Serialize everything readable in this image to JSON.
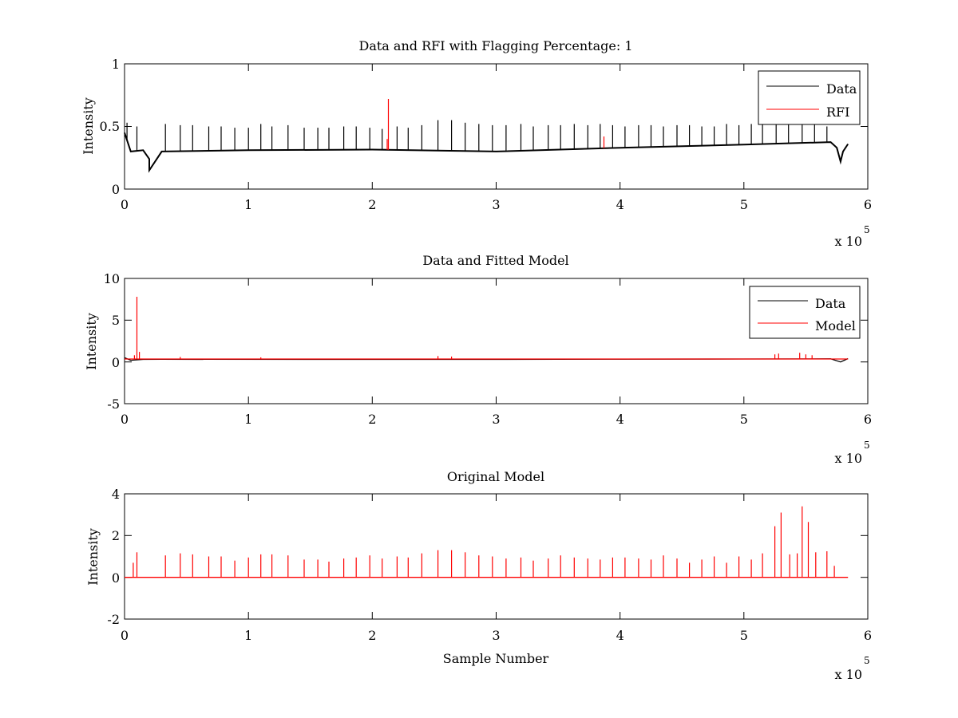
{
  "chart_data": [
    {
      "type": "line",
      "title": "Data and RFI with Flagging Percentage: 1",
      "xlabel": "",
      "ylabel": "Intensity",
      "xlim": [
        0,
        6
      ],
      "ylim": [
        0,
        1
      ],
      "xticks": [
        "0",
        "1",
        "2",
        "3",
        "4",
        "5",
        "6"
      ],
      "yticks": [
        "0",
        "0.5",
        "1"
      ],
      "x_multiplier_label": "x 10",
      "x_multiplier_exp": "5",
      "legend": {
        "placement": "top-right",
        "entries": [
          "Data",
          "RFI"
        ]
      },
      "series": [
        {
          "name": "Data",
          "color": "#000000",
          "baseline": [
            [
              0.0,
              0.45
            ],
            [
              0.05,
              0.3
            ],
            [
              0.15,
              0.31
            ],
            [
              0.2,
              0.24
            ],
            [
              0.2,
              0.15
            ],
            [
              0.3,
              0.3
            ],
            [
              1.0,
              0.31
            ],
            [
              2.0,
              0.315
            ],
            [
              3.0,
              0.3
            ],
            [
              4.0,
              0.33
            ],
            [
              5.0,
              0.355
            ],
            [
              5.7,
              0.375
            ],
            [
              5.75,
              0.33
            ],
            [
              5.78,
              0.22
            ],
            [
              5.8,
              0.3
            ],
            [
              5.84,
              0.36
            ]
          ],
          "spikes": [
            [
              0.02,
              0.53
            ],
            [
              0.1,
              0.5
            ],
            [
              0.33,
              0.52
            ],
            [
              0.45,
              0.51
            ],
            [
              0.55,
              0.51
            ],
            [
              0.68,
              0.5
            ],
            [
              0.78,
              0.5
            ],
            [
              0.89,
              0.49
            ],
            [
              1.0,
              0.49
            ],
            [
              1.1,
              0.52
            ],
            [
              1.19,
              0.5
            ],
            [
              1.32,
              0.51
            ],
            [
              1.45,
              0.49
            ],
            [
              1.56,
              0.49
            ],
            [
              1.65,
              0.49
            ],
            [
              1.77,
              0.5
            ],
            [
              1.87,
              0.5
            ],
            [
              1.98,
              0.49
            ],
            [
              2.08,
              0.48
            ],
            [
              2.2,
              0.5
            ],
            [
              2.29,
              0.49
            ],
            [
              2.4,
              0.51
            ],
            [
              2.53,
              0.55
            ],
            [
              2.64,
              0.55
            ],
            [
              2.75,
              0.53
            ],
            [
              2.86,
              0.52
            ],
            [
              2.97,
              0.51
            ],
            [
              3.08,
              0.51
            ],
            [
              3.2,
              0.52
            ],
            [
              3.3,
              0.5
            ],
            [
              3.42,
              0.51
            ],
            [
              3.52,
              0.51
            ],
            [
              3.63,
              0.52
            ],
            [
              3.74,
              0.51
            ],
            [
              3.84,
              0.52
            ],
            [
              3.94,
              0.51
            ],
            [
              4.04,
              0.5
            ],
            [
              4.15,
              0.51
            ],
            [
              4.25,
              0.51
            ],
            [
              4.35,
              0.5
            ],
            [
              4.46,
              0.51
            ],
            [
              4.56,
              0.51
            ],
            [
              4.66,
              0.5
            ],
            [
              4.76,
              0.5
            ],
            [
              4.86,
              0.52
            ],
            [
              4.96,
              0.51
            ],
            [
              5.06,
              0.52
            ],
            [
              5.15,
              0.52
            ],
            [
              5.26,
              0.52
            ],
            [
              5.36,
              0.53
            ],
            [
              5.47,
              0.52
            ],
            [
              5.57,
              0.53
            ],
            [
              5.67,
              0.5
            ]
          ]
        },
        {
          "name": "RFI",
          "color": "#ff0000",
          "spikes": [
            [
              2.13,
              0.72
            ],
            [
              2.12,
              0.4
            ],
            [
              3.87,
              0.42
            ]
          ]
        }
      ]
    },
    {
      "type": "line",
      "title": "Data and Fitted Model",
      "xlabel": "",
      "ylabel": "Intensity",
      "xlim": [
        0,
        6
      ],
      "ylim": [
        -5,
        10
      ],
      "xticks": [
        "0",
        "1",
        "2",
        "3",
        "4",
        "5",
        "6"
      ],
      "yticks": [
        "-5",
        "0",
        "5",
        "10"
      ],
      "x_multiplier_label": "x 10",
      "x_multiplier_exp": "5",
      "legend": {
        "placement": "top-right",
        "entries": [
          "Data",
          "Model"
        ]
      },
      "series": [
        {
          "name": "Data",
          "color": "#000000",
          "baseline": [
            [
              0.0,
              0.5
            ],
            [
              0.05,
              0.2
            ],
            [
              0.15,
              0.3
            ],
            [
              0.3,
              0.31
            ],
            [
              3.0,
              0.3
            ],
            [
              4.0,
              0.33
            ],
            [
              5.0,
              0.35
            ],
            [
              5.7,
              0.37
            ],
            [
              5.78,
              0.0
            ],
            [
              5.84,
              0.4
            ]
          ],
          "spikes": []
        },
        {
          "name": "Model",
          "color": "#ff0000",
          "baseline": [
            [
              0.0,
              0.35
            ],
            [
              5.84,
              0.35
            ]
          ],
          "spikes": [
            [
              0.1,
              7.8
            ],
            [
              0.12,
              1.2
            ],
            [
              0.08,
              0.8
            ],
            [
              0.45,
              0.6
            ],
            [
              1.1,
              0.55
            ],
            [
              2.53,
              0.7
            ],
            [
              2.64,
              0.65
            ],
            [
              5.25,
              0.9
            ],
            [
              5.28,
              1.0
            ],
            [
              5.45,
              1.1
            ],
            [
              5.5,
              0.9
            ],
            [
              5.55,
              0.8
            ]
          ]
        }
      ]
    },
    {
      "type": "line",
      "title": "Original Model",
      "xlabel": "Sample Number",
      "ylabel": "Intensity",
      "xlim": [
        0,
        6
      ],
      "ylim": [
        -2,
        4
      ],
      "xticks": [
        "0",
        "1",
        "2",
        "3",
        "4",
        "5",
        "6"
      ],
      "yticks": [
        "-2",
        "0",
        "2",
        "4"
      ],
      "x_multiplier_label": "x 10",
      "x_multiplier_exp": "5",
      "series": [
        {
          "name": "Model",
          "color": "#ff0000",
          "baseline": [
            [
              0.0,
              0.0
            ],
            [
              5.84,
              0.0
            ]
          ],
          "spikes": [
            [
              0.07,
              0.7
            ],
            [
              0.1,
              1.2
            ],
            [
              0.33,
              1.05
            ],
            [
              0.45,
              1.15
            ],
            [
              0.55,
              1.1
            ],
            [
              0.68,
              1.0
            ],
            [
              0.78,
              1.0
            ],
            [
              0.89,
              0.8
            ],
            [
              1.0,
              0.95
            ],
            [
              1.1,
              1.1
            ],
            [
              1.19,
              1.1
            ],
            [
              1.32,
              1.05
            ],
            [
              1.45,
              0.85
            ],
            [
              1.56,
              0.85
            ],
            [
              1.65,
              0.75
            ],
            [
              1.77,
              0.9
            ],
            [
              1.87,
              0.95
            ],
            [
              1.98,
              1.05
            ],
            [
              2.08,
              0.9
            ],
            [
              2.2,
              1.0
            ],
            [
              2.29,
              0.95
            ],
            [
              2.4,
              1.15
            ],
            [
              2.53,
              1.3
            ],
            [
              2.64,
              1.3
            ],
            [
              2.75,
              1.2
            ],
            [
              2.86,
              1.05
            ],
            [
              2.97,
              1.0
            ],
            [
              3.08,
              0.9
            ],
            [
              3.2,
              0.95
            ],
            [
              3.3,
              0.8
            ],
            [
              3.42,
              0.9
            ],
            [
              3.52,
              1.05
            ],
            [
              3.63,
              0.95
            ],
            [
              3.74,
              0.9
            ],
            [
              3.84,
              0.85
            ],
            [
              3.94,
              0.95
            ],
            [
              4.04,
              0.95
            ],
            [
              4.15,
              0.9
            ],
            [
              4.25,
              0.85
            ],
            [
              4.35,
              1.05
            ],
            [
              4.46,
              0.9
            ],
            [
              4.56,
              0.7
            ],
            [
              4.66,
              0.85
            ],
            [
              4.76,
              1.0
            ],
            [
              4.86,
              0.7
            ],
            [
              4.96,
              1.0
            ],
            [
              5.06,
              0.85
            ],
            [
              5.15,
              1.15
            ],
            [
              5.25,
              2.45
            ],
            [
              5.3,
              3.1
            ],
            [
              5.37,
              1.1
            ],
            [
              5.43,
              1.15
            ],
            [
              5.47,
              3.4
            ],
            [
              5.52,
              2.65
            ],
            [
              5.58,
              1.2
            ],
            [
              5.67,
              1.25
            ],
            [
              5.73,
              0.55
            ]
          ]
        }
      ]
    }
  ]
}
